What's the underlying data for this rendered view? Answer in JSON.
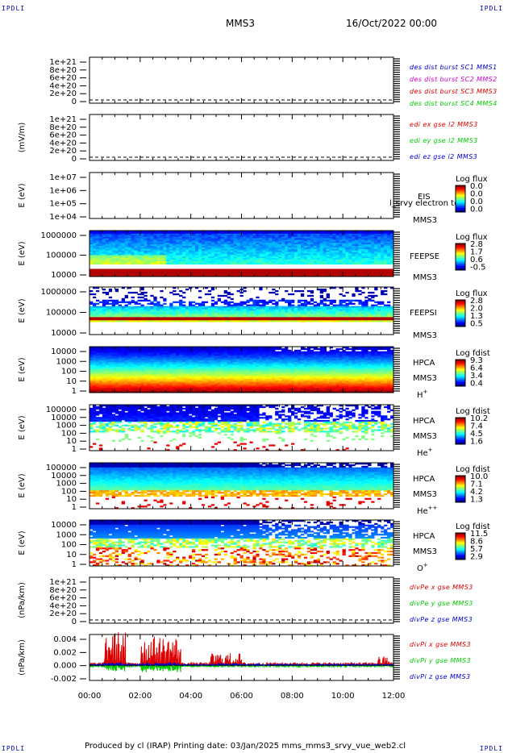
{
  "corners": {
    "tl": "IPDLI",
    "tr": "IPDLI",
    "bl": "IPDLI",
    "br": "IPDLI"
  },
  "header": {
    "mission": "MMS3",
    "date": "16/Oct/2022 00:00"
  },
  "footer": {
    "text": "Produced by cl (IRAP)   Printing date: 03/Jan/2025   mms_mms3_srvy_vue_web2.cl"
  },
  "x_ticks": [
    "00:00",
    "02:00",
    "04:00",
    "06:00",
    "08:00",
    "10:00",
    "12:00"
  ],
  "colors": {
    "red": "#dd0000",
    "green": "#00cc00",
    "blue": "#0000cc",
    "magenta": "#cc00cc",
    "dark_red": "#aa0000"
  },
  "chart_data": [
    {
      "id": "p1",
      "type": "line",
      "ylabel": "",
      "ytick_labels": [
        "1e+21",
        "8e+20",
        "6e+20",
        "4e+20",
        "2e+20",
        "0"
      ],
      "legend": [
        {
          "text": "des dist burst SC1 MMS1",
          "color": "#0000cc"
        },
        {
          "text": "des dist burst SC2 MMS2",
          "color": "#cc00cc"
        },
        {
          "text": "des dist burst SC3 MMS3",
          "color": "#dd0000"
        },
        {
          "text": "des dist burst SC4 MMS4",
          "color": "#00cc00"
        }
      ]
    },
    {
      "id": "p2",
      "type": "line",
      "ylabel": "(mV/m)",
      "ytick_labels": [
        "1e+21",
        "8e+20",
        "6e+20",
        "4e+20",
        "2e+20",
        "0"
      ],
      "legend": [
        {
          "text": "edi ex gse l2 MMS3",
          "color": "#dd0000"
        },
        {
          "text": "edi ey gse l2 MMS3",
          "color": "#00cc00"
        },
        {
          "text": "edi ez gse l2 MMS3",
          "color": "#0000cc"
        }
      ]
    },
    {
      "id": "p3",
      "type": "heatmap",
      "ylabel": "E (eV)",
      "ytick_labels": [
        "1e+07",
        "1e+06",
        "1e+05",
        "1e+04"
      ],
      "side_labels": [
        "EIS",
        "MMS3"
      ],
      "overlay_label": "l_srvy electron to",
      "colorbar": {
        "title": "Log flux",
        "ticks": [
          "0.0",
          "0.0",
          "0.0",
          "0.0"
        ]
      }
    },
    {
      "id": "p4",
      "type": "heatmap",
      "ylabel": "E (eV)",
      "ytick_labels": [
        "1000000",
        "100000",
        "10000"
      ],
      "side_labels": [
        "FEEPSE",
        "MMS3"
      ],
      "colorbar": {
        "title": "Log flux",
        "ticks": [
          "2.8",
          "1.7",
          "0.6",
          "-0.5"
        ]
      }
    },
    {
      "id": "p5",
      "type": "heatmap",
      "ylabel": "E (eV)",
      "ytick_labels": [
        "1000000",
        "100000",
        "10000"
      ],
      "side_labels": [
        "FEEPSI",
        "MMS3"
      ],
      "colorbar": {
        "title": "Log flux",
        "ticks": [
          "2.8",
          "2.0",
          "1.3",
          "0.5"
        ]
      }
    },
    {
      "id": "p6",
      "type": "heatmap",
      "ylabel": "E (eV)",
      "ytick_labels": [
        "10000",
        "1000",
        "100",
        "10",
        "1"
      ],
      "side_labels": [
        "HPCA",
        "MMS3"
      ],
      "species": "H",
      "species_sup": "+",
      "colorbar": {
        "title": "Log fdist",
        "ticks": [
          "9.3",
          "6.4",
          "3.4",
          "0.4"
        ]
      }
    },
    {
      "id": "p7",
      "type": "heatmap",
      "ylabel": "E (eV)",
      "ytick_labels": [
        "100000",
        "10000",
        "1000",
        "100",
        "10",
        "1"
      ],
      "side_labels": [
        "HPCA",
        "MMS3"
      ],
      "species": "He",
      "species_sup": "+",
      "colorbar": {
        "title": "Log fdist",
        "ticks": [
          "10.2",
          "7.4",
          "4.5",
          "1.6"
        ]
      }
    },
    {
      "id": "p8",
      "type": "heatmap",
      "ylabel": "E (eV)",
      "ytick_labels": [
        "100000",
        "10000",
        "1000",
        "100",
        "10",
        "1"
      ],
      "side_labels": [
        "HPCA",
        "MMS3"
      ],
      "species": "He",
      "species_sup": "++",
      "colorbar": {
        "title": "Log fdist",
        "ticks": [
          "10.0",
          "7.1",
          "4.2",
          "1.3"
        ]
      }
    },
    {
      "id": "p9",
      "type": "heatmap",
      "ylabel": "E (eV)",
      "ytick_labels": [
        "10000",
        "1000",
        "100",
        "10",
        "1"
      ],
      "side_labels": [
        "HPCA",
        "MMS3"
      ],
      "species": "O",
      "species_sup": "+",
      "colorbar": {
        "title": "Log fdist",
        "ticks": [
          "11.5",
          "8.6",
          "5.7",
          "2.9"
        ]
      }
    },
    {
      "id": "p10",
      "type": "line",
      "ylabel": "(nPa/km)",
      "ytick_labels": [
        "1e+21",
        "8e+20",
        "6e+20",
        "4e+20",
        "2e+20",
        "0"
      ],
      "legend": [
        {
          "text": "divPe x gse MMS3",
          "color": "#dd0000"
        },
        {
          "text": "divPe y gse MMS3",
          "color": "#00cc00"
        },
        {
          "text": "divPe z gse MMS3",
          "color": "#0000cc"
        }
      ]
    },
    {
      "id": "p11",
      "type": "line",
      "ylabel": "(nPa/km)",
      "ytick_labels": [
        "0.004",
        "0.002",
        "0.000",
        "-0.002"
      ],
      "legend": [
        {
          "text": "divPi x gse MMS3",
          "color": "#dd0000"
        },
        {
          "text": "divPi y gse MMS3",
          "color": "#00cc00"
        },
        {
          "text": "divPi z gse MMS3",
          "color": "#0000cc"
        }
      ]
    }
  ]
}
